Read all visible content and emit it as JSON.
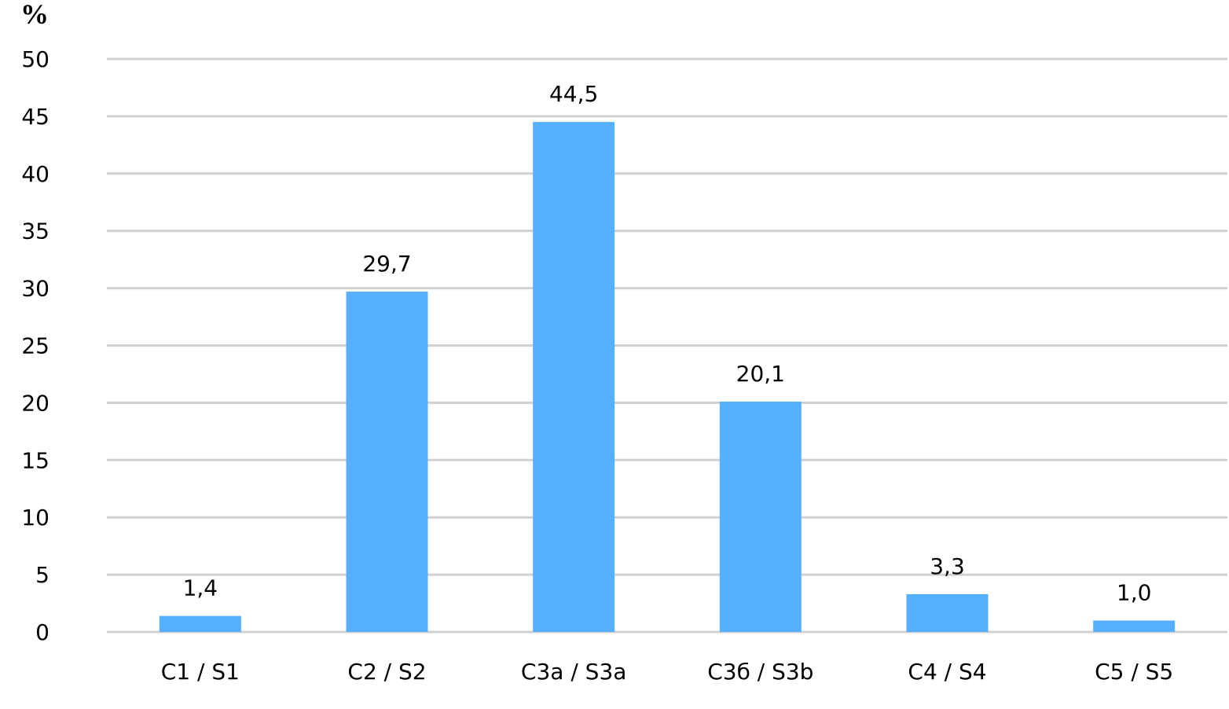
{
  "chart_data": {
    "type": "bar",
    "ylabel": "%",
    "categories": [
      "C1 / S1",
      "C2 / S2",
      "C3a / S3a",
      "C3б / S3b",
      "C4 / S4",
      "C5 / S5"
    ],
    "values": [
      1.4,
      29.7,
      44.5,
      20.1,
      3.3,
      1.0
    ],
    "data_labels": [
      "1,4",
      "29,7",
      "44,5",
      "20,1",
      "3,3",
      "1,0"
    ],
    "yticks": [
      "0",
      "5",
      "10",
      "15",
      "20",
      "25",
      "30",
      "35",
      "40",
      "45",
      "50"
    ],
    "ylim": [
      0,
      50
    ],
    "grid": true,
    "bar_color": "#56b0ff",
    "grid_color": "#d0d0d0"
  }
}
